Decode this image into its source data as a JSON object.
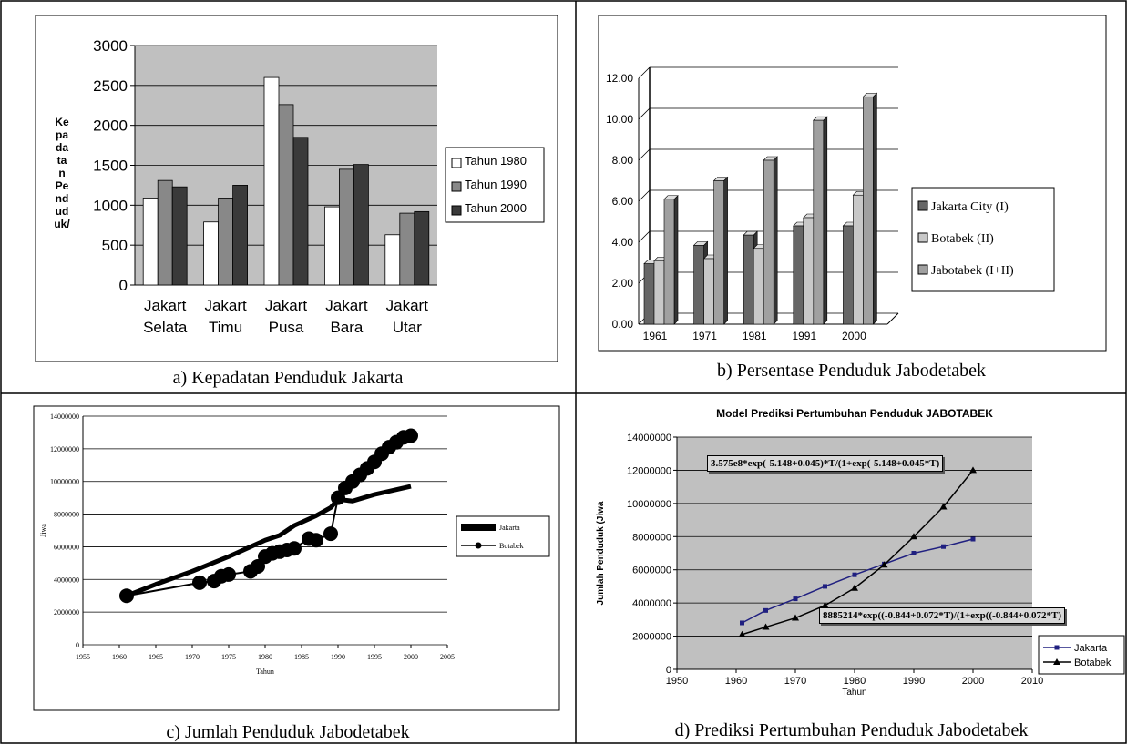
{
  "panels": {
    "a": {
      "caption": "a) Kepadatan Penduduk Jakarta",
      "chart_data": {
        "type": "bar",
        "categories": [
          [
            "Jakart",
            "Selata"
          ],
          [
            "Jakart",
            "Timu"
          ],
          [
            "Jakart",
            "Pusa"
          ],
          [
            "Jakart",
            "Bara"
          ],
          [
            "Jakart",
            "Utar"
          ]
        ],
        "series": [
          {
            "name": "Tahun 1980",
            "values": [
              1090,
              790,
              2600,
              980,
              630
            ],
            "color": "#ffffff"
          },
          {
            "name": "Tahun 1990",
            "values": [
              1310,
              1090,
              2260,
              1450,
              900
            ],
            "color": "#888888"
          },
          {
            "name": "Tahun 2000",
            "values": [
              1230,
              1250,
              1850,
              1510,
              920
            ],
            "color": "#3a3a3a"
          }
        ],
        "ylim": [
          0,
          3000
        ],
        "yticks": [
          0,
          500,
          1000,
          1500,
          2000,
          2500,
          3000
        ],
        "ylabel_lines": [
          "Ke",
          "pa",
          "da",
          "ta",
          "n",
          "Pe",
          "nd",
          "ud",
          "uk/"
        ],
        "plot_bg": "#c0c0c0",
        "grid": true,
        "legend": "right"
      }
    },
    "b": {
      "caption": "b) Persentase Penduduk Jabodetabek",
      "chart_data": {
        "type": "bar",
        "categories": [
          "1961",
          "1971",
          "1981",
          "1991",
          "2000"
        ],
        "series": [
          {
            "name": "Jakarta City (I)",
            "values": [
              2.95,
              3.85,
              4.35,
              4.8,
              4.8
            ],
            "color": "#666666"
          },
          {
            "name": "Botabek (II)",
            "values": [
              3.1,
              3.2,
              3.7,
              5.2,
              6.3
            ],
            "color": "#c8c8c8"
          },
          {
            "name": "Jabotabek (I+II)",
            "values": [
              6.1,
              7.0,
              8.0,
              9.95,
              11.1
            ],
            "color": "#a0a0a0"
          }
        ],
        "ylim": [
          0,
          12
        ],
        "yticks": [
          "0.00",
          "2.00",
          "4.00",
          "6.00",
          "8.00",
          "10.00",
          "12.00"
        ],
        "grid": true,
        "legend": "right"
      }
    },
    "c": {
      "caption": "c) Jumlah Penduduk Jabodetabek",
      "chart_data": {
        "type": "line",
        "xlabel": "Tahun",
        "ylabel": "Jiwa",
        "xlim": [
          1955,
          2005
        ],
        "ylim": [
          0,
          14000000
        ],
        "xticks": [
          1955,
          1960,
          1965,
          1970,
          1975,
          1980,
          1985,
          1990,
          1995,
          2000,
          2005
        ],
        "yticks": [
          0,
          2000000,
          4000000,
          6000000,
          8000000,
          10000000,
          12000000,
          14000000
        ],
        "series": [
          {
            "name": "Jakarta",
            "style": "thick",
            "x": [
              1961,
              1965,
              1970,
              1975,
              1978,
              1980,
              1982,
              1984,
              1987,
              1989,
              1990,
              1992,
              1995,
              1998,
              2000
            ],
            "y": [
              3000000,
              3700000,
              4500000,
              5400000,
              6000000,
              6400000,
              6700000,
              7300000,
              7900000,
              8400000,
              8900000,
              8800000,
              9200000,
              9500000,
              9700000
            ]
          },
          {
            "name": "Botabek",
            "style": "markers",
            "x": [
              1961,
              1971,
              1973,
              1974,
              1975,
              1978,
              1979,
              1980,
              1981,
              1982,
              1983,
              1984,
              1986,
              1987,
              1989,
              1990,
              1991,
              1992,
              1993,
              1994,
              1995,
              1996,
              1997,
              1998,
              1999,
              2000
            ],
            "y": [
              3000000,
              3800000,
              3900000,
              4200000,
              4300000,
              4500000,
              4800000,
              5400000,
              5600000,
              5700000,
              5800000,
              5900000,
              6500000,
              6400000,
              6800000,
              9000000,
              9600000,
              10000000,
              10400000,
              10800000,
              11200000,
              11700000,
              12100000,
              12400000,
              12700000,
              12800000
            ]
          }
        ],
        "legend": "right"
      }
    },
    "d": {
      "caption": "d) Prediksi Pertumbuhan Penduduk Jabodetabek",
      "chart_data": {
        "type": "line",
        "title": "Model Prediksi Pertumbuhan Penduduk JABOTABEK",
        "xlabel": "Tahun",
        "ylabel": "Jumlah Penduduk (Jiwa",
        "xlim": [
          1950,
          2010
        ],
        "ylim": [
          0,
          14000000
        ],
        "xticks": [
          1950,
          1960,
          1970,
          1980,
          1990,
          2000,
          2010
        ],
        "yticks": [
          0,
          2000000,
          4000000,
          6000000,
          8000000,
          10000000,
          12000000,
          14000000
        ],
        "plot_bg": "#c0c0c0",
        "series": [
          {
            "name": "Jakarta",
            "marker": "square",
            "color": "#202080",
            "x": [
              1961,
              1965,
              1970,
              1975,
              1980,
              1985,
              1990,
              1995,
              2000
            ],
            "y": [
              2800000,
              3550000,
              4250000,
              5000000,
              5700000,
              6350000,
              7000000,
              7400000,
              7850000
            ]
          },
          {
            "name": "Botabek",
            "marker": "triangle",
            "color": "#000000",
            "x": [
              1961,
              1965,
              1970,
              1975,
              1980,
              1985,
              1990,
              1995,
              2000
            ],
            "y": [
              2100000,
              2550000,
              3100000,
              3850000,
              4900000,
              6300000,
              8000000,
              9800000,
              12000000
            ]
          }
        ],
        "annotations": [
          "3.575e8*exp(-5.148+0.045)*T/(1+exp(-5.148+0.045*T)",
          "8885214*exp((-0.844+0.072*T)/(1+exp((-0.844+0.072*T)"
        ],
        "legend": "bottom-right"
      }
    }
  }
}
